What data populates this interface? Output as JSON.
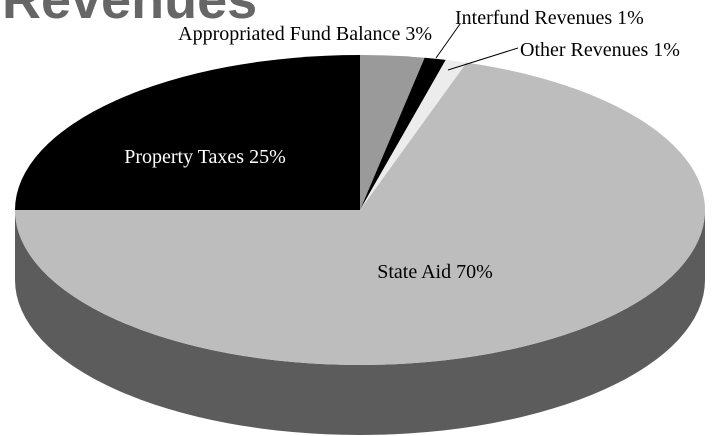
{
  "chart_data": {
    "type": "pie",
    "title": "Revenues",
    "categories": [
      "Appropriated Fund Balance",
      "Interfund Revenues",
      "Other Revenues",
      "State Aid",
      "Property Taxes"
    ],
    "values": [
      3,
      1,
      1,
      70,
      25
    ],
    "value_labels": [
      "3%",
      "1%",
      "1%",
      "70%",
      "25%"
    ],
    "colors": [
      "#9a9a9a",
      "#000000",
      "#ececec",
      "#bdbdbd",
      "#000000"
    ]
  }
}
